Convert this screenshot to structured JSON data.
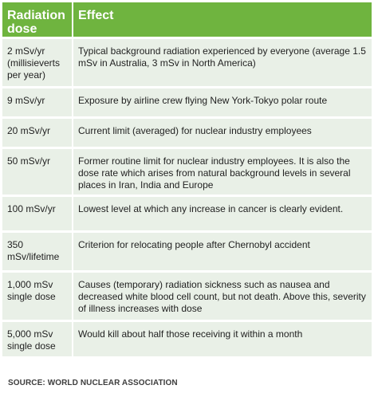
{
  "header": {
    "dose_label_line1": "Radiation",
    "dose_label_line2": "dose",
    "effect_label": "Effect"
  },
  "rows": [
    {
      "dose": [
        "2 mSv/yr",
        "(millisieverts",
        "per year)"
      ],
      "effect": "Typical background radiation experienced by everyone (average 1.5 mSv in Australia, 3 mSv in North America)"
    },
    {
      "dose": [
        "9 mSv/yr"
      ],
      "effect": "Exposure by airline crew flying New York-Tokyo polar route"
    },
    {
      "dose": [
        "20 mSv/yr"
      ],
      "effect": "Current limit (averaged) for nuclear industry employees"
    },
    {
      "dose": [
        "50 mSv/yr"
      ],
      "effect": "Former routine limit for nuclear industry employees. It is also the dose rate which arises from natural background levels in several places in Iran, India and Europe"
    },
    {
      "dose": [
        "100 mSv/yr"
      ],
      "effect": "Lowest level at which any increase in cancer is clearly evident."
    },
    {
      "dose": [
        "350",
        "mSv/lifetime"
      ],
      "effect": "Criterion for relocating people after Chernobyl accident"
    },
    {
      "dose": [
        "1,000 mSv",
        "single dose"
      ],
      "effect": "Causes (temporary) radiation sickness such as nausea and decreased white blood cell count, but not death. Above this, severity of illness increases with dose"
    },
    {
      "dose": [
        "5,000 mSv",
        "single dose"
      ],
      "effect": "Would kill about half those receiving it within a month"
    }
  ],
  "source": "SOURCE: WORLD NUCLEAR ASSOCIATION",
  "colors": {
    "header_bg": "#6fb43f",
    "row_bg": "#e9f0e7"
  }
}
